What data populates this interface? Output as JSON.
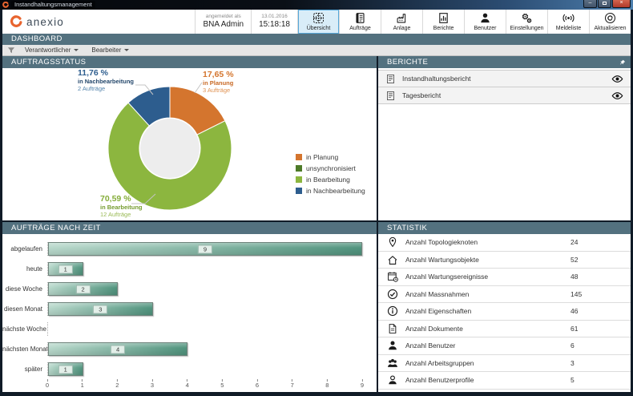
{
  "window": {
    "title": "Instandhaltungsmanagement"
  },
  "header": {
    "logo_text": "anexio",
    "login_label": "angemeldet als",
    "user_name": "BNA Admin",
    "date": "13.01.2016",
    "time": "15:18:18",
    "buttons": [
      {
        "label": "Übersicht",
        "icon": "overview-icon",
        "selected": true
      },
      {
        "label": "Aufträge",
        "icon": "orders-icon",
        "selected": false
      },
      {
        "label": "Anlage",
        "icon": "plant-icon",
        "selected": false
      },
      {
        "label": "Berichte",
        "icon": "reports-icon",
        "selected": false
      },
      {
        "label": "Benutzer",
        "icon": "users-icon",
        "selected": false
      },
      {
        "label": "Einstellungen",
        "icon": "settings-icon",
        "selected": false
      },
      {
        "label": "Meldeliste",
        "icon": "broadcast-icon",
        "selected": false
      },
      {
        "label": "Aktualisieren",
        "icon": "refresh-icon",
        "selected": false
      }
    ]
  },
  "dashboard_bar": {
    "title": "DASHBOARD"
  },
  "filter_bar": {
    "filters": [
      {
        "label": "Verantwortlicher"
      },
      {
        "label": "Bearbeiter"
      }
    ]
  },
  "panels": {
    "auftragsstatus": {
      "title": "AUFTRAGSSTATUS"
    },
    "berichte": {
      "title": "BERICHTE",
      "items": [
        {
          "label": "Instandhaltungsbericht"
        },
        {
          "label": "Tagesbericht"
        }
      ]
    },
    "auftraege_nach_zeit": {
      "title": "AUFTRÄGE NACH ZEIT"
    },
    "statistik": {
      "title": "STATISTIK",
      "rows": [
        {
          "icon": "map-pin-icon",
          "label": "Anzahl Topologieknoten",
          "value": "24"
        },
        {
          "icon": "house-icon",
          "label": "Anzahl Wartungsobjekte",
          "value": "52"
        },
        {
          "icon": "calendar-icon",
          "label": "Anzahl Wartungsereignisse",
          "value": "48"
        },
        {
          "icon": "check-circle-icon",
          "label": "Anzahl Massnahmen",
          "value": "145"
        },
        {
          "icon": "info-circle-icon",
          "label": "Anzahl Eigenschaften",
          "value": "46"
        },
        {
          "icon": "document-icon",
          "label": "Anzahl Dokumente",
          "value": "61"
        },
        {
          "icon": "user-icon",
          "label": "Anzahl Benutzer",
          "value": "6"
        },
        {
          "icon": "user-group-icon",
          "label": "Anzahl Arbeitsgruppen",
          "value": "3"
        },
        {
          "icon": "user-profile-icon",
          "label": "Anzahl Benutzerprofile",
          "value": "5"
        }
      ]
    }
  },
  "chart_data": [
    {
      "type": "pie",
      "subtype": "donut",
      "title": "AUFTRAGSSTATUS",
      "unit": "Aufträge",
      "slices": [
        {
          "label": "in Planung",
          "value": 3,
          "percent": 17.65,
          "percent_label": "17,65 %",
          "count_label": "3 Aufträge",
          "color": "#d4752e"
        },
        {
          "label": "in Bearbeitung",
          "value": 12,
          "percent": 70.59,
          "percent_label": "70,59 %",
          "count_label": "12 Aufträge",
          "color": "#8cb63f"
        },
        {
          "label": "in Nachbearbeitung",
          "value": 2,
          "percent": 11.76,
          "percent_label": "11,76 %",
          "count_label": "2 Aufträge",
          "color": "#2d5d8e"
        }
      ],
      "legend_position": "right",
      "legend": [
        {
          "label": "in Planung",
          "color": "#d4752e"
        },
        {
          "label": "unsynchronisiert",
          "color": "#4e7b28"
        },
        {
          "label": "in Bearbeitung",
          "color": "#8cb63f"
        },
        {
          "label": "in Nachbearbeitung",
          "color": "#2d5d8e"
        }
      ]
    },
    {
      "type": "bar",
      "orientation": "horizontal",
      "title": "AUFTRÄGE NACH ZEIT",
      "categories": [
        "abgelaufen",
        "heute",
        "diese Woche",
        "diesen Monat",
        "nächste Woche",
        "nächsten Monat",
        "später"
      ],
      "values": [
        9,
        1,
        2,
        3,
        0,
        4,
        1
      ],
      "xlim": [
        0,
        9
      ],
      "x_ticks": [
        "0",
        "1",
        "2",
        "3",
        "4",
        "5",
        "6",
        "7",
        "8",
        "9"
      ],
      "bar_color_start": "#b9d9cc",
      "bar_color_end": "#51947e",
      "grid": false
    }
  ]
}
